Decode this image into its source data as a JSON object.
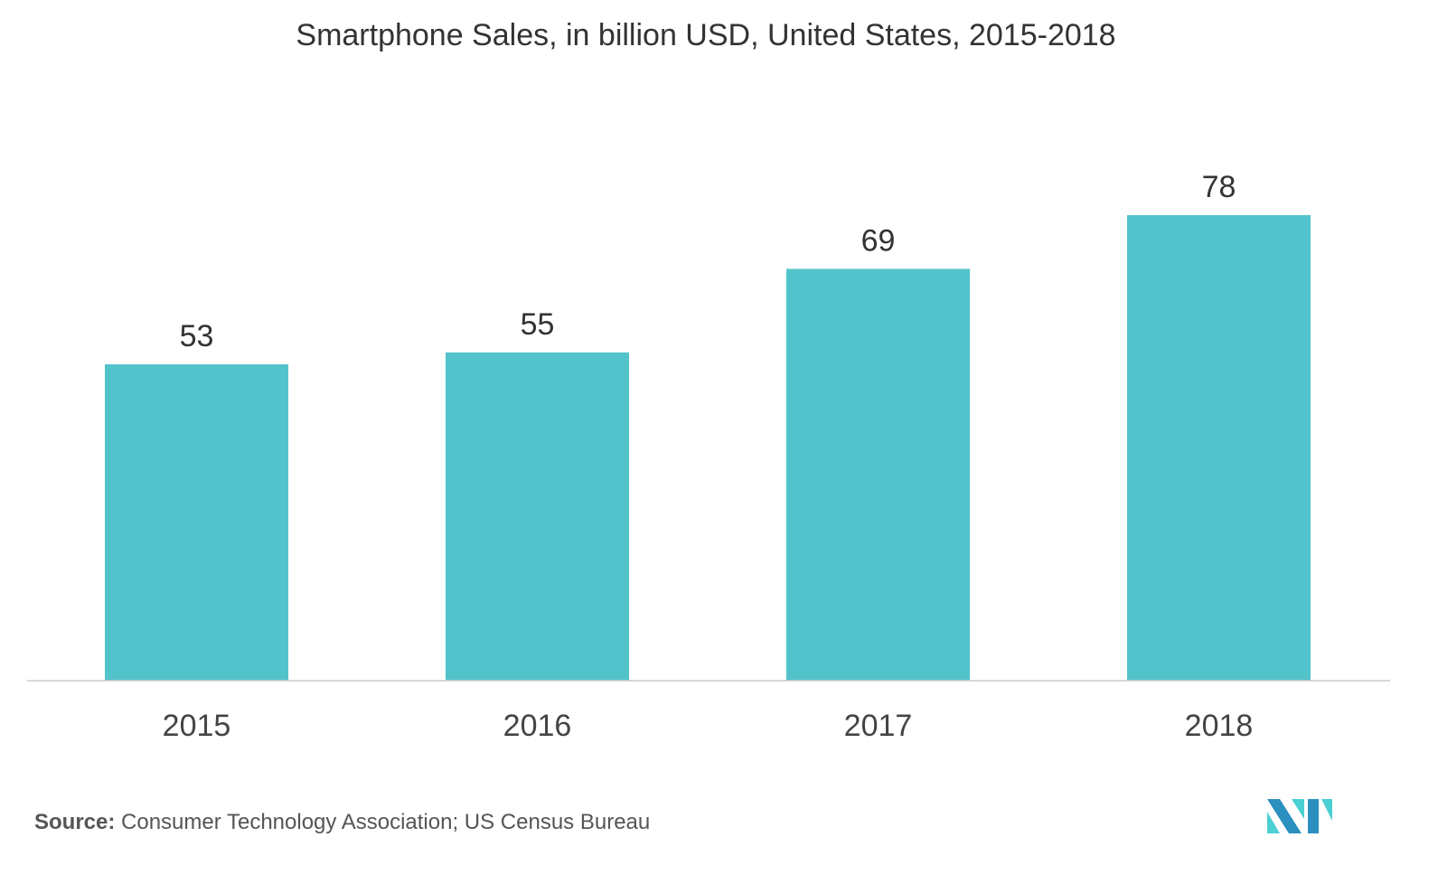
{
  "chart_data": {
    "type": "bar",
    "title": "Smartphone Sales, in billion USD, United States, 2015-2018",
    "categories": [
      "2015",
      "2016",
      "2017",
      "2018"
    ],
    "values": [
      53,
      55,
      69,
      78
    ],
    "data_labels": [
      "53",
      "55",
      "69",
      "78"
    ],
    "xlabel": "",
    "ylabel": "",
    "ylim": [
      0,
      78
    ],
    "grid": false,
    "bar_color": "#52c3ca"
  },
  "source": {
    "label": "Source:",
    "text": " Consumer Technology Association; US Census Bureau"
  },
  "logo": {
    "colors": [
      "#2b8fbf",
      "#4ccfd3"
    ]
  }
}
